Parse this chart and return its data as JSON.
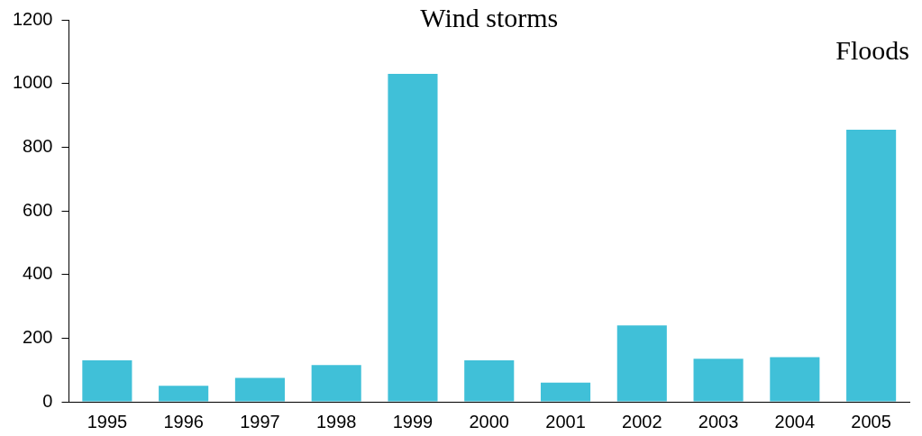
{
  "chart_data": {
    "type": "bar",
    "categories": [
      "1995",
      "1996",
      "1997",
      "1998",
      "1999",
      "2000",
      "2001",
      "2002",
      "2003",
      "2004",
      "2005"
    ],
    "values": [
      130,
      50,
      75,
      115,
      1030,
      130,
      60,
      240,
      135,
      140,
      855
    ],
    "color": "#40c0d8",
    "ylim": [
      0,
      1200
    ],
    "yticks": [
      0,
      200,
      400,
      600,
      800,
      1000,
      1200
    ],
    "grid": false,
    "legend": false,
    "annotations": [
      "Wind storms",
      "Floods"
    ]
  }
}
